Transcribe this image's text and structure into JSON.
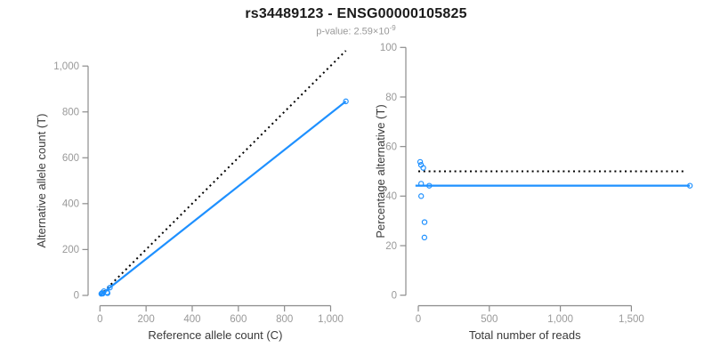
{
  "header": {
    "title": "rs34489123 - ENSG00000105825",
    "pvalue_prefix": "p-value: 2.59×10",
    "pvalue_exponent": "-9"
  },
  "colors": {
    "accent_blue": "#1e90ff",
    "dotted_black": "#000000",
    "axis_gray": "#8c8c8c",
    "tick_label_gray": "#999999",
    "axis_title_color": "#3a3a3a",
    "subtitle_gray": "#999999"
  },
  "chart_data": [
    {
      "type": "scatter",
      "name": "allele-counts-scatter",
      "xlabel": "Reference allele count (C)",
      "ylabel": "Alternative allele count (T)",
      "xlim": [
        0,
        1090
      ],
      "ylim": [
        0,
        1070
      ],
      "xticks": [
        0,
        200,
        400,
        600,
        800,
        1000
      ],
      "xtick_labels": [
        "0",
        "200",
        "400",
        "600",
        "800",
        "1,000"
      ],
      "yticks": [
        0,
        200,
        400,
        600,
        800,
        1000
      ],
      "ytick_labels": [
        "0",
        "200",
        "400",
        "600",
        "800",
        "1,000"
      ],
      "grid": false,
      "legend": false,
      "points": [
        [
          6,
          7
        ],
        [
          9,
          10
        ],
        [
          17,
          18
        ],
        [
          11,
          9
        ],
        [
          43,
          34
        ],
        [
          12,
          8
        ],
        [
          31,
          13
        ],
        [
          33,
          10
        ],
        [
          1066,
          846
        ]
      ],
      "lines": [
        {
          "name": "identity-line",
          "style": "dotted",
          "color": "#000000",
          "x1": 0,
          "y1": 0,
          "x2": 1066,
          "y2": 1067
        },
        {
          "name": "fit-line",
          "style": "solid",
          "color": "#1e90ff",
          "x1": 0,
          "y1": 0,
          "x2": 1066,
          "y2": 846
        }
      ]
    },
    {
      "type": "scatter",
      "name": "percentage-vs-reads-scatter",
      "xlabel": "Total number of reads",
      "ylabel": "Percentage alternative (T)",
      "xlim": [
        0,
        1980
      ],
      "ylim": [
        0,
        100
      ],
      "xticks": [
        0,
        500,
        1000,
        1500
      ],
      "xtick_labels": [
        "0",
        "500",
        "1,000",
        "1,500"
      ],
      "yticks": [
        0,
        20,
        40,
        60,
        80,
        100
      ],
      "ytick_labels": [
        "0",
        "20",
        "40",
        "60",
        "80",
        "100"
      ],
      "grid": false,
      "legend": false,
      "points": [
        [
          13,
          53.8
        ],
        [
          19,
          52.6
        ],
        [
          35,
          51.4
        ],
        [
          20,
          45
        ],
        [
          77,
          44.2
        ],
        [
          20,
          40
        ],
        [
          44,
          29.5
        ],
        [
          43,
          23.3
        ],
        [
          1912,
          44.2
        ]
      ],
      "lines": [
        {
          "name": "expected-50pct-line",
          "style": "dotted",
          "color": "#000000",
          "x1": 0,
          "y1": 50,
          "x2": 1870,
          "y2": 50
        },
        {
          "name": "fit-line",
          "style": "solid",
          "color": "#1e90ff",
          "x1": -20,
          "y1": 44.2,
          "x2": 1912,
          "y2": 44.2
        }
      ]
    }
  ]
}
